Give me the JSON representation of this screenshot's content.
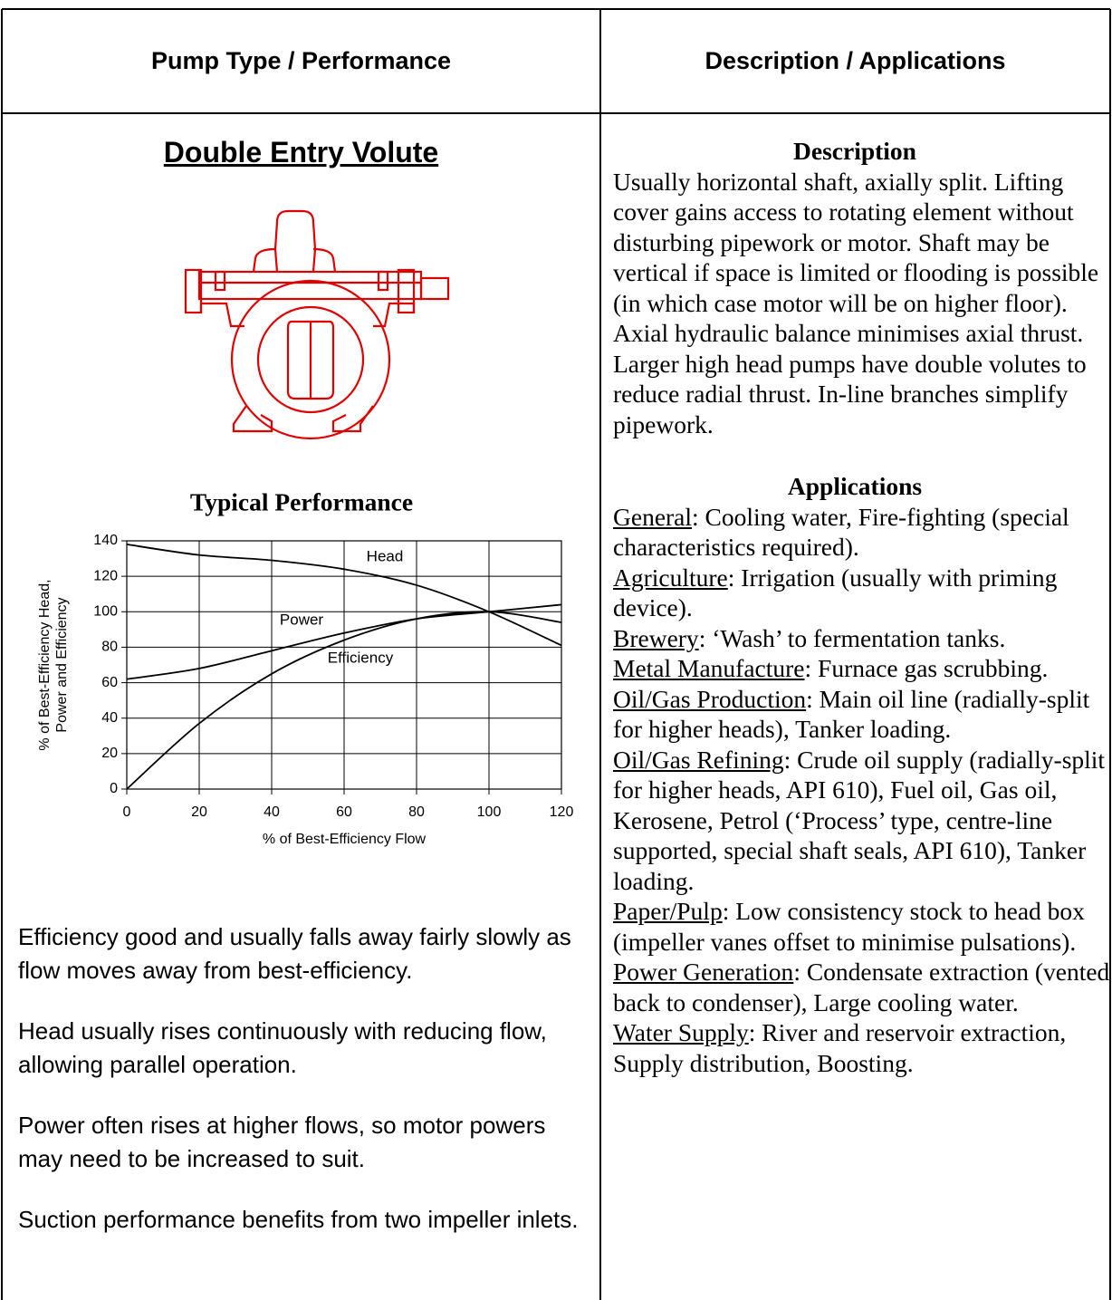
{
  "header": {
    "left": "Pump Type / Performance",
    "right": "Description / Applications"
  },
  "pump": {
    "title": "Double Entry Volute"
  },
  "chart_data": {
    "type": "line",
    "title": "Typical Performance",
    "x_label": "% of Best-Efficiency Flow",
    "y_label": [
      "% of Best-Efficiency Head,",
      "Power and Efficiency"
    ],
    "x": [
      0,
      20,
      40,
      60,
      80,
      100,
      120
    ],
    "series": [
      {
        "name": "Head",
        "color": "#000000",
        "values": [
          138,
          132,
          129,
          124,
          115,
          100,
          81
        ]
      },
      {
        "name": "Power",
        "color": "#000000",
        "values": [
          62,
          68,
          78,
          88,
          96,
          100,
          104
        ]
      },
      {
        "name": "Efficiency",
        "color": "#000000",
        "values": [
          0,
          37,
          65,
          84,
          96,
          100,
          94
        ]
      }
    ],
    "xlim": [
      0,
      120
    ],
    "ylim": [
      0,
      140
    ],
    "xticks": [
      0,
      20,
      40,
      60,
      80,
      100,
      120
    ],
    "yticks": [
      0,
      20,
      40,
      60,
      80,
      100,
      120,
      140
    ],
    "grid": true
  },
  "notes": [
    "Efficiency good and usually falls away fairly slowly as flow moves away from best-efficiency.",
    "Head usually rises continuously with reducing flow, allowing parallel operation.",
    "Power often rises at higher flows, so motor powers may need to be increased to suit.",
    "Suction performance benefits from two impeller inlets."
  ],
  "description": {
    "heading": "Description",
    "text": "Usually horizontal shaft, axially split. Lifting cover gains access to rotating element without disturbing pipework or motor. Shaft may be vertical if space is limited or flooding is possible (in which case motor will be on higher floor). Axial hydraulic balance minimises axial thrust. Larger high head pumps have double volutes to reduce radial thrust. In-line branches simplify pipework."
  },
  "applications": {
    "heading": "Applications",
    "items": [
      {
        "sector": "General",
        "text": ": Cooling water, Fire-fighting (special characteristics required)."
      },
      {
        "sector": "Agriculture",
        "text": ": Irrigation (usually with priming device)."
      },
      {
        "sector": "Brewery",
        "text": ": ‘Wash’ to fermentation tanks."
      },
      {
        "sector": "Metal Manufacture",
        "text": ": Furnace gas scrubbing."
      },
      {
        "sector": "Oil/Gas Production",
        "text": ":  Main oil line (radially-split for higher heads), Tanker loading."
      },
      {
        "sector": "Oil/Gas Refining",
        "text": ": Crude oil supply (radially-split for higher heads, API 610), Fuel oil, Gas oil, Kerosene, Petrol (‘Process’ type, centre-line supported, special shaft seals, API 610), Tanker loading."
      },
      {
        "sector": "Paper/Pulp",
        "text": ": Low consistency stock to head box (impeller vanes offset to minimise pulsations)."
      },
      {
        "sector": "Power Generation",
        "text": ": Condensate extraction (vented back to condenser), Large cooling water."
      },
      {
        "sector": "Water Supply",
        "text": ": River and reservoir extraction, Supply distribution, Boosting."
      }
    ]
  }
}
